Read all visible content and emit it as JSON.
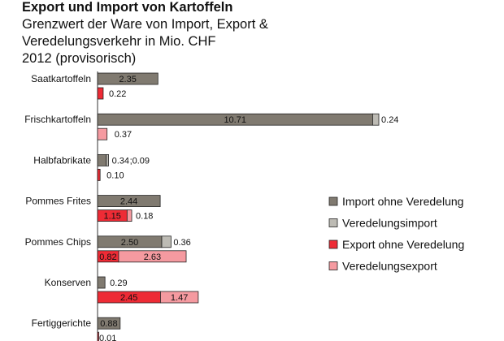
{
  "title": "Export und Import von Kartoffeln",
  "subtitle_lines": [
    "Grenzwert der Ware von Import, Export &",
    "Veredelungsverkehr in Mio. CHF",
    "2012 (provisorisch)"
  ],
  "chart_data": {
    "type": "bar",
    "orientation": "horizontal",
    "stacked": true,
    "title": "Export und Import von Kartoffeln",
    "subtitle": "Grenzwert der Ware von Import, Export & Veredelungsverkehr in Mio. CHF 2012 (provisorisch)",
    "xlabel": "",
    "ylabel": "",
    "xlim": [
      0,
      11
    ],
    "grid": false,
    "legend_position": "right",
    "categories": [
      "Saatkartoffeln",
      "Frischkartoffeln",
      "Halbfabrikate",
      "Pommes Frites",
      "Pommes Chips",
      "Konserven",
      "Fertiggerichte"
    ],
    "series": [
      {
        "name": "Import ohne Veredelung",
        "group": "import",
        "color": "#807a70",
        "values": [
          2.35,
          10.71,
          0.34,
          2.44,
          2.5,
          0.29,
          0.88
        ]
      },
      {
        "name": "Veredelungsimport",
        "group": "import",
        "color": "#bdbbb4",
        "values": [
          0,
          0.24,
          0.09,
          0,
          0.36,
          0,
          0
        ]
      },
      {
        "name": "Export ohne Veredelung",
        "group": "export",
        "color": "#ee2b35",
        "values": [
          0.22,
          0,
          0.1,
          1.15,
          0.82,
          2.45,
          0.01
        ]
      },
      {
        "name": "Veredelungsexport",
        "group": "export",
        "color": "#f59aa0",
        "values": [
          0,
          0.37,
          0,
          0.18,
          2.63,
          1.47,
          0
        ]
      }
    ],
    "labels": [
      [
        "2.35",
        "0.22"
      ],
      [
        "10.71",
        "0.24",
        "0.37"
      ],
      [
        "0.34",
        ";0.09",
        "0.10"
      ],
      [
        "2.44",
        "1.15",
        "0.18"
      ],
      [
        "2.50",
        "0.36",
        "0.82",
        "2.63"
      ],
      [
        "0.29",
        "2.45",
        "1.47"
      ],
      [
        "0.88",
        "0.01"
      ]
    ]
  }
}
